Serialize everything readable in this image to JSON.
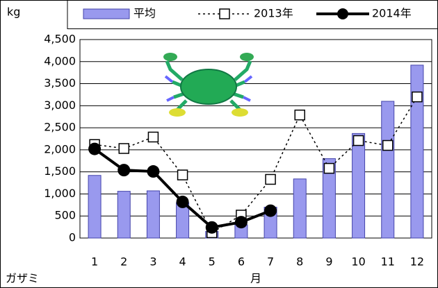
{
  "chart_data": {
    "type": "bar-line",
    "y_label": "kg",
    "x_label": "月",
    "note": "ガザミ",
    "categories": [
      "1",
      "2",
      "3",
      "4",
      "5",
      "6",
      "7",
      "8",
      "9",
      "10",
      "11",
      "12"
    ],
    "series": [
      {
        "name": "平均",
        "type": "bar",
        "color": "#9999ee",
        "values": [
          1420,
          1060,
          1070,
          800,
          150,
          300,
          700,
          1340,
          1800,
          2370,
          3100,
          3920
        ]
      },
      {
        "name": "2013年",
        "type": "line",
        "style": "dashed",
        "marker": "square",
        "color": "#000000",
        "values": [
          2120,
          2030,
          2290,
          1430,
          120,
          520,
          1330,
          2790,
          1580,
          2210,
          2100,
          3200
        ]
      },
      {
        "name": "2014年",
        "type": "line",
        "style": "solid",
        "marker": "circle",
        "color": "#000000",
        "values": [
          2020,
          1540,
          1510,
          820,
          240,
          360,
          620,
          null,
          null,
          null,
          null,
          null
        ]
      }
    ],
    "ylim": [
      0,
      4500
    ],
    "yticks": [
      0,
      500,
      {
        "value": 1000,
        "label": "1,000"
      },
      {
        "value": 1500,
        "label": "1,500"
      },
      {
        "value": 2000,
        "label": "2,000"
      },
      {
        "value": 2500,
        "label": "2,500"
      },
      {
        "value": 3000,
        "label": "3,000"
      },
      {
        "value": 3500,
        "label": "3,500"
      },
      {
        "value": 4000,
        "label": "4,000"
      },
      {
        "value": 4500,
        "label": "4,500"
      }
    ],
    "grid": true,
    "legend": "top"
  }
}
